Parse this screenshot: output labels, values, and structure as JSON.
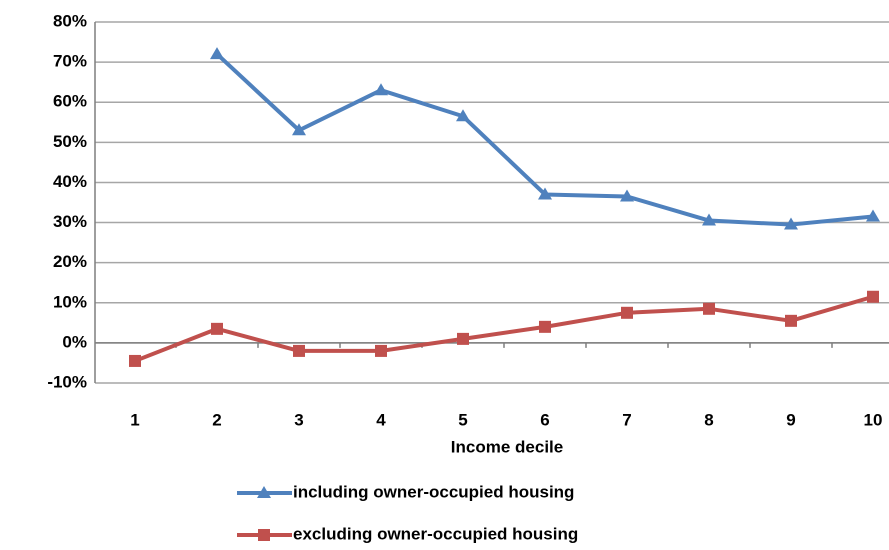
{
  "chart_data": {
    "type": "line",
    "xlabel": "Income decile",
    "categories": [
      "1",
      "2",
      "3",
      "4",
      "5",
      "6",
      "7",
      "8",
      "9",
      "10"
    ],
    "series": [
      {
        "name": "including owner-occupied housing",
        "color": "#4f81bd",
        "marker": "triangle",
        "values": [
          null,
          72,
          53,
          63,
          56.5,
          37,
          36.5,
          30.5,
          29.5,
          31.5
        ]
      },
      {
        "name": "excluding owner-occupied housing",
        "color": "#c0504d",
        "marker": "square",
        "values": [
          -4.5,
          3.5,
          -2,
          -2,
          1,
          4,
          7.5,
          8.5,
          5.5,
          11.5
        ]
      }
    ],
    "ylim": [
      -10,
      80
    ],
    "yticks": [
      {
        "value": -10,
        "label": "-10%"
      },
      {
        "value": 0,
        "label": "0%"
      },
      {
        "value": 10,
        "label": "10%"
      },
      {
        "value": 20,
        "label": "20%"
      },
      {
        "value": 30,
        "label": "30%"
      },
      {
        "value": 40,
        "label": "40%"
      },
      {
        "value": 50,
        "label": "50%"
      },
      {
        "value": 60,
        "label": "60%"
      },
      {
        "value": 70,
        "label": "70%"
      },
      {
        "value": 80,
        "label": "80%"
      }
    ],
    "grid": true
  }
}
